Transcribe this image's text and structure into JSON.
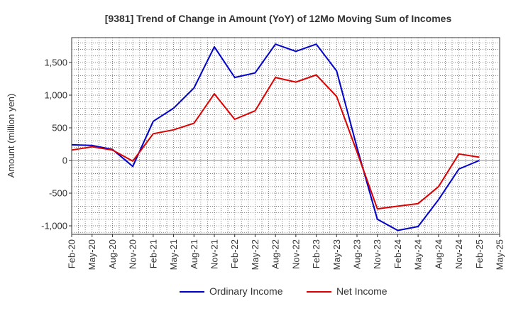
{
  "chart_data": {
    "type": "line",
    "title": "[9381]  Trend of Change in Amount (YoY) of 12Mo Moving Sum of Incomes",
    "xlabel": "",
    "ylabel": "Amount (million yen)",
    "categories": [
      "Feb-20",
      "May-20",
      "Aug-20",
      "Nov-20",
      "Feb-21",
      "May-21",
      "Aug-21",
      "Nov-21",
      "Feb-22",
      "May-22",
      "Aug-22",
      "Nov-22",
      "Feb-23",
      "May-23",
      "Aug-23",
      "Nov-23",
      "Feb-24",
      "May-24",
      "Aug-24",
      "Nov-24",
      "Feb-25",
      "May-25"
    ],
    "ylim": [
      -1130,
      1880
    ],
    "yticks": [
      -1000,
      -500,
      0,
      500,
      1000,
      1500
    ],
    "ytick_labels": [
      "-1,000",
      "-500",
      "0",
      "500",
      "1,000",
      "1,500"
    ],
    "grid": true,
    "legend_position": "bottom",
    "series": [
      {
        "name": "Ordinary Income",
        "color": "#0000cc",
        "values": [
          240,
          230,
          170,
          -90,
          600,
          800,
          1110,
          1740,
          1270,
          1340,
          1780,
          1670,
          1780,
          1370,
          200,
          -900,
          -1070,
          -1010,
          -600,
          -130,
          0,
          null
        ]
      },
      {
        "name": "Net Income",
        "color": "#dd0000",
        "values": [
          160,
          210,
          160,
          -10,
          410,
          470,
          570,
          1020,
          630,
          760,
          1270,
          1200,
          1310,
          980,
          130,
          -740,
          -700,
          -660,
          -400,
          100,
          50,
          null
        ]
      }
    ]
  }
}
